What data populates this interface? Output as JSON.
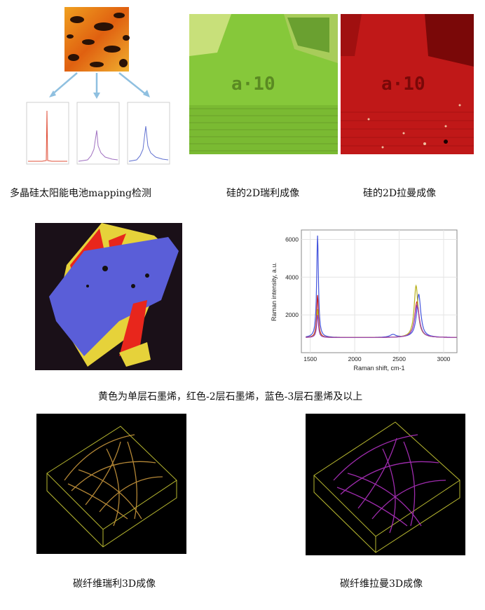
{
  "captions": {
    "solar": "多晶硅太阳能电池mapping检测",
    "si_rayleigh": "硅的2D瑞利成像",
    "si_raman": "硅的2D拉曼成像",
    "graphene": "黄色为单层石墨烯，红色-2层石墨烯，蓝色-3层石墨烯及以上",
    "cf_rayleigh": "碳纤维瑞利3D成像",
    "cf_raman": "碳纤维拉曼3D成像"
  },
  "sample_label": "a·10",
  "colors": {
    "single_layer": "#e6d23a",
    "double_layer": "#e8261c",
    "triple_layer": "#5a5ed8",
    "rayleigh_green": "#86c83a",
    "raman_red": "#c01818",
    "fiber_gold": "#c8963c",
    "fiber_magenta": "#b030c0",
    "box_yellow": "#b8b830"
  },
  "chart_data": {
    "type": "line",
    "xlabel": "Raman shift, cm-1",
    "ylabel": "Raman intensity, a.u.",
    "xlim": [
      1400,
      3150
    ],
    "ylim": [
      0,
      6500
    ],
    "xticks": [
      1500,
      2000,
      2500,
      3000
    ],
    "yticks": [
      2000,
      4000,
      6000
    ],
    "grid": true,
    "series": [
      {
        "color": "#4455dd",
        "peaks": [
          [
            1582,
            5400,
            12
          ],
          [
            2430,
            150,
            40
          ],
          [
            2720,
            2300,
            28
          ]
        ],
        "baseline": 800
      },
      {
        "color": "#cc2222",
        "peaks": [
          [
            1582,
            2250,
            12
          ],
          [
            2700,
            1900,
            30
          ]
        ],
        "baseline": 800
      },
      {
        "color": "#b7b01c",
        "peaks": [
          [
            1582,
            1500,
            12
          ],
          [
            2690,
            2750,
            26
          ]
        ],
        "baseline": 800
      },
      {
        "color": "#9a40c0",
        "peaks": [
          [
            1582,
            1200,
            12
          ],
          [
            2700,
            1700,
            32
          ]
        ],
        "baseline": 800
      }
    ]
  }
}
